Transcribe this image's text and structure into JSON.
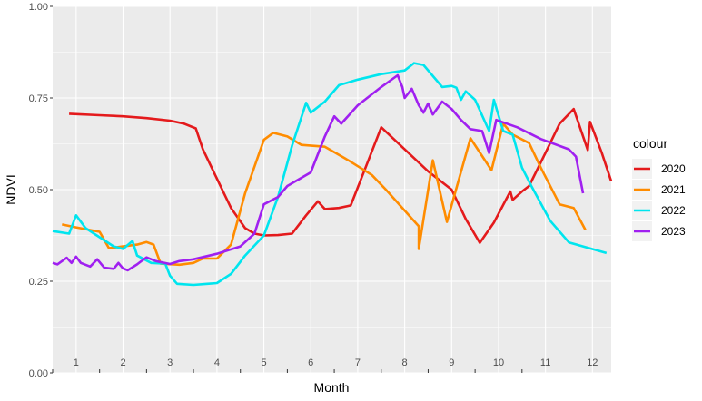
{
  "chart_data": {
    "type": "line",
    "xlabel": "Month",
    "ylabel": "NDVI",
    "ylim": [
      0,
      1
    ],
    "xlim": [
      0.5,
      12.4
    ],
    "x_tick_labels": [
      "1",
      "2",
      "3",
      "4",
      "5",
      "6",
      "7",
      "8",
      "9",
      "10",
      "11",
      "12"
    ],
    "y_ticks": [
      0.0,
      0.25,
      0.5,
      0.75,
      1.0
    ],
    "y_tick_labels": [
      "0.00",
      "0.25",
      "0.50",
      "0.75",
      "1.00"
    ],
    "grid": true,
    "legend_title": "colour",
    "legend_position": "right",
    "series": [
      {
        "name": "2020",
        "color": "#e41a1c",
        "points": [
          [
            0.85,
            0.707
          ],
          [
            1.5,
            0.703
          ],
          [
            2.0,
            0.7
          ],
          [
            2.5,
            0.695
          ],
          [
            3.0,
            0.688
          ],
          [
            3.3,
            0.68
          ],
          [
            3.55,
            0.667
          ],
          [
            3.7,
            0.61
          ],
          [
            4.0,
            0.53
          ],
          [
            4.3,
            0.45
          ],
          [
            4.6,
            0.395
          ],
          [
            4.8,
            0.38
          ],
          [
            5.0,
            0.375
          ],
          [
            5.3,
            0.376
          ],
          [
            5.6,
            0.38
          ],
          [
            5.9,
            0.43
          ],
          [
            6.15,
            0.468
          ],
          [
            6.3,
            0.447
          ],
          [
            6.6,
            0.45
          ],
          [
            6.85,
            0.457
          ],
          [
            7.15,
            0.555
          ],
          [
            7.5,
            0.67
          ],
          [
            8.0,
            0.61
          ],
          [
            8.5,
            0.55
          ],
          [
            9.0,
            0.5
          ],
          [
            9.3,
            0.42
          ],
          [
            9.6,
            0.355
          ],
          [
            9.9,
            0.41
          ],
          [
            10.25,
            0.495
          ],
          [
            10.3,
            0.472
          ],
          [
            10.5,
            0.495
          ],
          [
            10.65,
            0.51
          ],
          [
            11.0,
            0.6
          ],
          [
            11.3,
            0.68
          ],
          [
            11.6,
            0.72
          ],
          [
            11.9,
            0.608
          ],
          [
            11.95,
            0.685
          ],
          [
            12.2,
            0.6
          ],
          [
            12.4,
            0.523
          ]
        ]
      },
      {
        "name": "2021",
        "color": "#ff8c00",
        "points": [
          [
            0.7,
            0.405
          ],
          [
            1.0,
            0.397
          ],
          [
            1.5,
            0.385
          ],
          [
            1.7,
            0.34
          ],
          [
            2.0,
            0.345
          ],
          [
            2.3,
            0.35
          ],
          [
            2.5,
            0.357
          ],
          [
            2.65,
            0.35
          ],
          [
            2.8,
            0.298
          ],
          [
            3.2,
            0.295
          ],
          [
            3.5,
            0.3
          ],
          [
            3.7,
            0.312
          ],
          [
            4.0,
            0.312
          ],
          [
            4.3,
            0.35
          ],
          [
            4.6,
            0.49
          ],
          [
            5.0,
            0.636
          ],
          [
            5.2,
            0.655
          ],
          [
            5.5,
            0.645
          ],
          [
            5.8,
            0.622
          ],
          [
            6.3,
            0.617
          ],
          [
            6.8,
            0.58
          ],
          [
            7.3,
            0.54
          ],
          [
            7.6,
            0.5
          ],
          [
            8.3,
            0.4
          ],
          [
            8.3,
            0.338
          ],
          [
            8.6,
            0.58
          ],
          [
            8.9,
            0.412
          ],
          [
            9.4,
            0.64
          ],
          [
            9.85,
            0.553
          ],
          [
            10.1,
            0.68
          ],
          [
            10.3,
            0.65
          ],
          [
            10.65,
            0.627
          ],
          [
            10.9,
            0.56
          ],
          [
            11.3,
            0.46
          ],
          [
            11.6,
            0.45
          ],
          [
            11.85,
            0.39
          ]
        ]
      },
      {
        "name": "2022",
        "color": "#00e5ee",
        "points": [
          [
            0.5,
            0.387
          ],
          [
            0.85,
            0.38
          ],
          [
            1.0,
            0.43
          ],
          [
            1.2,
            0.395
          ],
          [
            1.5,
            0.37
          ],
          [
            1.8,
            0.345
          ],
          [
            2.0,
            0.338
          ],
          [
            2.2,
            0.36
          ],
          [
            2.3,
            0.32
          ],
          [
            2.6,
            0.3
          ],
          [
            2.9,
            0.298
          ],
          [
            3.0,
            0.265
          ],
          [
            3.15,
            0.243
          ],
          [
            3.5,
            0.24
          ],
          [
            3.8,
            0.243
          ],
          [
            4.0,
            0.245
          ],
          [
            4.3,
            0.27
          ],
          [
            4.6,
            0.32
          ],
          [
            5.0,
            0.375
          ],
          [
            5.3,
            0.48
          ],
          [
            5.6,
            0.62
          ],
          [
            5.9,
            0.737
          ],
          [
            6.0,
            0.71
          ],
          [
            6.3,
            0.74
          ],
          [
            6.6,
            0.785
          ],
          [
            7.0,
            0.8
          ],
          [
            7.5,
            0.815
          ],
          [
            8.0,
            0.825
          ],
          [
            8.2,
            0.845
          ],
          [
            8.4,
            0.84
          ],
          [
            8.8,
            0.78
          ],
          [
            9.0,
            0.783
          ],
          [
            9.1,
            0.778
          ],
          [
            9.2,
            0.745
          ],
          [
            9.3,
            0.768
          ],
          [
            9.5,
            0.745
          ],
          [
            9.8,
            0.66
          ],
          [
            9.9,
            0.745
          ],
          [
            10.1,
            0.66
          ],
          [
            10.3,
            0.65
          ],
          [
            10.5,
            0.56
          ],
          [
            10.7,
            0.51
          ],
          [
            11.1,
            0.415
          ],
          [
            11.5,
            0.356
          ],
          [
            11.8,
            0.345
          ],
          [
            12.3,
            0.327
          ]
        ]
      },
      {
        "name": "2023",
        "color": "#a020f0",
        "points": [
          [
            0.5,
            0.3
          ],
          [
            0.6,
            0.296
          ],
          [
            0.8,
            0.314
          ],
          [
            0.9,
            0.3
          ],
          [
            1.0,
            0.317
          ],
          [
            1.1,
            0.3
          ],
          [
            1.3,
            0.29
          ],
          [
            1.45,
            0.31
          ],
          [
            1.6,
            0.287
          ],
          [
            1.8,
            0.284
          ],
          [
            1.9,
            0.3
          ],
          [
            2.0,
            0.285
          ],
          [
            2.1,
            0.28
          ],
          [
            2.3,
            0.296
          ],
          [
            2.4,
            0.306
          ],
          [
            2.5,
            0.315
          ],
          [
            2.7,
            0.305
          ],
          [
            3.0,
            0.297
          ],
          [
            3.2,
            0.305
          ],
          [
            3.5,
            0.31
          ],
          [
            4.0,
            0.325
          ],
          [
            4.5,
            0.345
          ],
          [
            4.8,
            0.38
          ],
          [
            5.0,
            0.46
          ],
          [
            5.3,
            0.48
          ],
          [
            5.5,
            0.51
          ],
          [
            6.0,
            0.547
          ],
          [
            6.3,
            0.645
          ],
          [
            6.5,
            0.7
          ],
          [
            6.65,
            0.68
          ],
          [
            7.0,
            0.73
          ],
          [
            7.5,
            0.78
          ],
          [
            7.85,
            0.812
          ],
          [
            7.95,
            0.78
          ],
          [
            8.0,
            0.75
          ],
          [
            8.15,
            0.775
          ],
          [
            8.3,
            0.73
          ],
          [
            8.4,
            0.71
          ],
          [
            8.5,
            0.735
          ],
          [
            8.6,
            0.705
          ],
          [
            8.8,
            0.74
          ],
          [
            9.0,
            0.72
          ],
          [
            9.2,
            0.69
          ],
          [
            9.4,
            0.665
          ],
          [
            9.65,
            0.66
          ],
          [
            9.8,
            0.6
          ],
          [
            9.95,
            0.69
          ],
          [
            10.4,
            0.67
          ],
          [
            10.9,
            0.638
          ],
          [
            11.5,
            0.61
          ],
          [
            11.65,
            0.59
          ],
          [
            11.8,
            0.49
          ]
        ]
      }
    ]
  }
}
